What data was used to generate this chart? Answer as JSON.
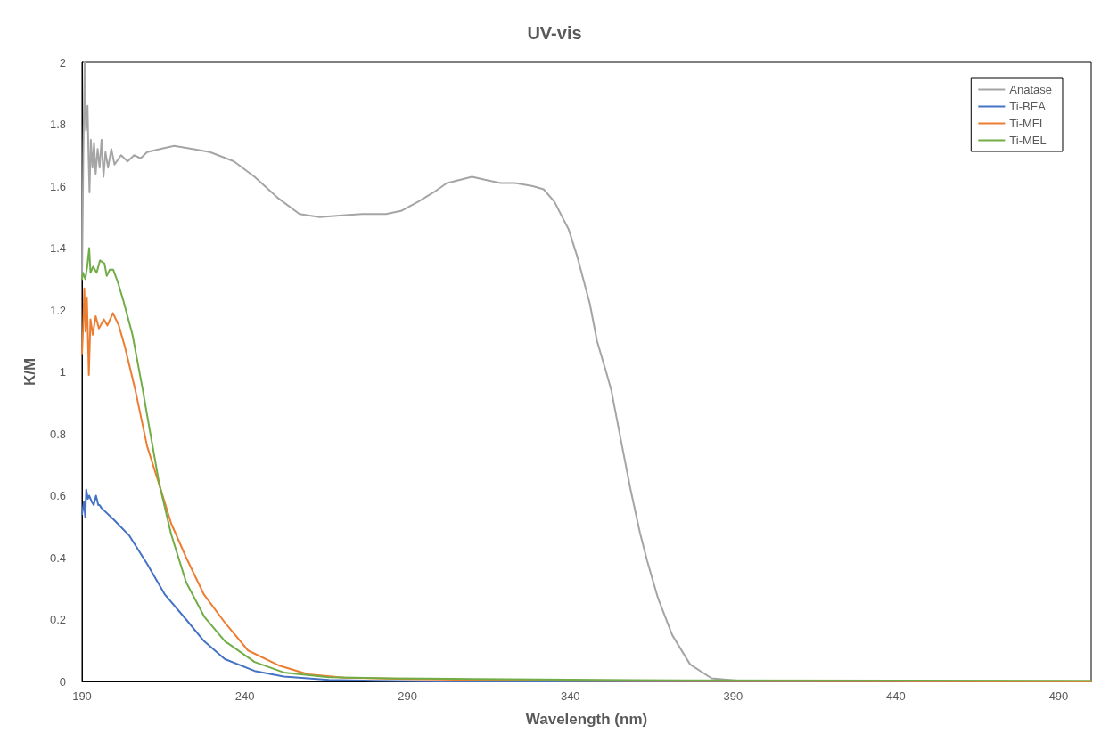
{
  "chart_data": {
    "type": "line",
    "title": "UV-vis",
    "xlabel": "Wavelength (nm)",
    "ylabel": "K/M",
    "xlim": [
      190,
      500
    ],
    "xticks": [
      190,
      240,
      290,
      340,
      390,
      440,
      490
    ],
    "ylim": [
      0,
      2
    ],
    "yticks": [
      0,
      0.2,
      0.4,
      0.6,
      0.8,
      1,
      1.2,
      1.4,
      1.6,
      1.8,
      2
    ],
    "grid": false,
    "legend": "top right",
    "marker": "none",
    "line_style": "solid",
    "series": [
      {
        "name": "Anatase",
        "color": "#a5a5a5",
        "x": [
          190,
          190.4,
          190.8,
          191.2,
          191.7,
          192,
          192.3,
          192.7,
          193.2,
          193.7,
          194.2,
          194.8,
          195.4,
          196,
          196.6,
          197.2,
          198,
          199,
          200,
          202,
          204,
          206,
          208,
          210,
          214,
          218.3,
          224,
          229.3,
          236.7,
          243,
          250.4,
          256.8,
          263,
          269,
          276,
          283.4,
          288,
          293.3,
          298,
          302.1,
          306,
          309.8,
          314,
          318.6,
          323,
          328.5,
          331.8,
          335.1,
          339.5,
          342.2,
          346,
          348.2,
          351,
          352.6,
          355.9,
          358.5,
          361.4,
          363.6,
          366.9,
          371.3,
          376.8,
          383.4,
          392,
          400,
          450,
          500
        ],
        "values": [
          1.3,
          1.7,
          2.0,
          1.78,
          1.86,
          1.7,
          1.58,
          1.75,
          1.66,
          1.74,
          1.64,
          1.72,
          1.66,
          1.75,
          1.63,
          1.71,
          1.66,
          1.72,
          1.67,
          1.7,
          1.68,
          1.7,
          1.69,
          1.71,
          1.72,
          1.73,
          1.72,
          1.71,
          1.68,
          1.63,
          1.56,
          1.51,
          1.5,
          1.505,
          1.51,
          1.51,
          1.52,
          1.55,
          1.58,
          1.61,
          1.62,
          1.63,
          1.62,
          1.61,
          1.61,
          1.6,
          1.59,
          1.55,
          1.46,
          1.37,
          1.22,
          1.1,
          1.0,
          0.94,
          0.76,
          0.62,
          0.48,
          0.39,
          0.27,
          0.15,
          0.055,
          0.01,
          0.002,
          0,
          0,
          0
        ]
      },
      {
        "name": "Ti-BEA",
        "color": "#4472c4",
        "x": [
          190,
          190.6,
          191,
          191.3,
          191.8,
          192.2,
          193,
          193.6,
          194.3,
          195,
          195.4,
          196,
          200,
          204.6,
          210,
          215.5,
          222,
          227.5,
          233.9,
          243,
          252,
          265.8,
          280,
          300,
          500
        ],
        "values": [
          0.54,
          0.58,
          0.53,
          0.62,
          0.59,
          0.6,
          0.58,
          0.57,
          0.6,
          0.57,
          0.57,
          0.56,
          0.52,
          0.47,
          0.38,
          0.28,
          0.2,
          0.13,
          0.072,
          0.034,
          0.016,
          0.005,
          0.002,
          0,
          0
        ]
      },
      {
        "name": "Ti-MFI",
        "color": "#ed7d31",
        "x": [
          190,
          190.3,
          190.7,
          191.1,
          191.5,
          192.1,
          192.6,
          193.3,
          194.2,
          195.2,
          196.7,
          197.8,
          199.5,
          201.3,
          203.2,
          206.4,
          210,
          213.3,
          217.4,
          222,
          227.5,
          233.9,
          241,
          250.4,
          259.5,
          270.5,
          290,
          310,
          340,
          500
        ],
        "values": [
          1.06,
          1.13,
          1.27,
          1.13,
          1.24,
          0.99,
          1.17,
          1.12,
          1.18,
          1.14,
          1.17,
          1.15,
          1.19,
          1.15,
          1.08,
          0.94,
          0.76,
          0.65,
          0.51,
          0.4,
          0.28,
          0.19,
          0.1,
          0.052,
          0.023,
          0.012,
          0.008,
          0.005,
          0.002,
          0
        ]
      },
      {
        "name": "Ti-MEL",
        "color": "#70ad47",
        "x": [
          190,
          190.3,
          191,
          191.6,
          192.2,
          192.6,
          193.4,
          194.5,
          195.5,
          196.9,
          197.6,
          198.5,
          199.6,
          201,
          202.7,
          205.5,
          208.7,
          210,
          213.7,
          217.4,
          222,
          227.5,
          233.9,
          243,
          252,
          265.8,
          285,
          310,
          360,
          500
        ],
        "values": [
          1.3,
          1.32,
          1.3,
          1.34,
          1.4,
          1.32,
          1.34,
          1.32,
          1.36,
          1.35,
          1.31,
          1.33,
          1.33,
          1.29,
          1.23,
          1.12,
          0.94,
          0.86,
          0.64,
          0.475,
          0.32,
          0.21,
          0.13,
          0.063,
          0.029,
          0.014,
          0.01,
          0.008,
          0.004,
          0.002
        ]
      }
    ]
  }
}
